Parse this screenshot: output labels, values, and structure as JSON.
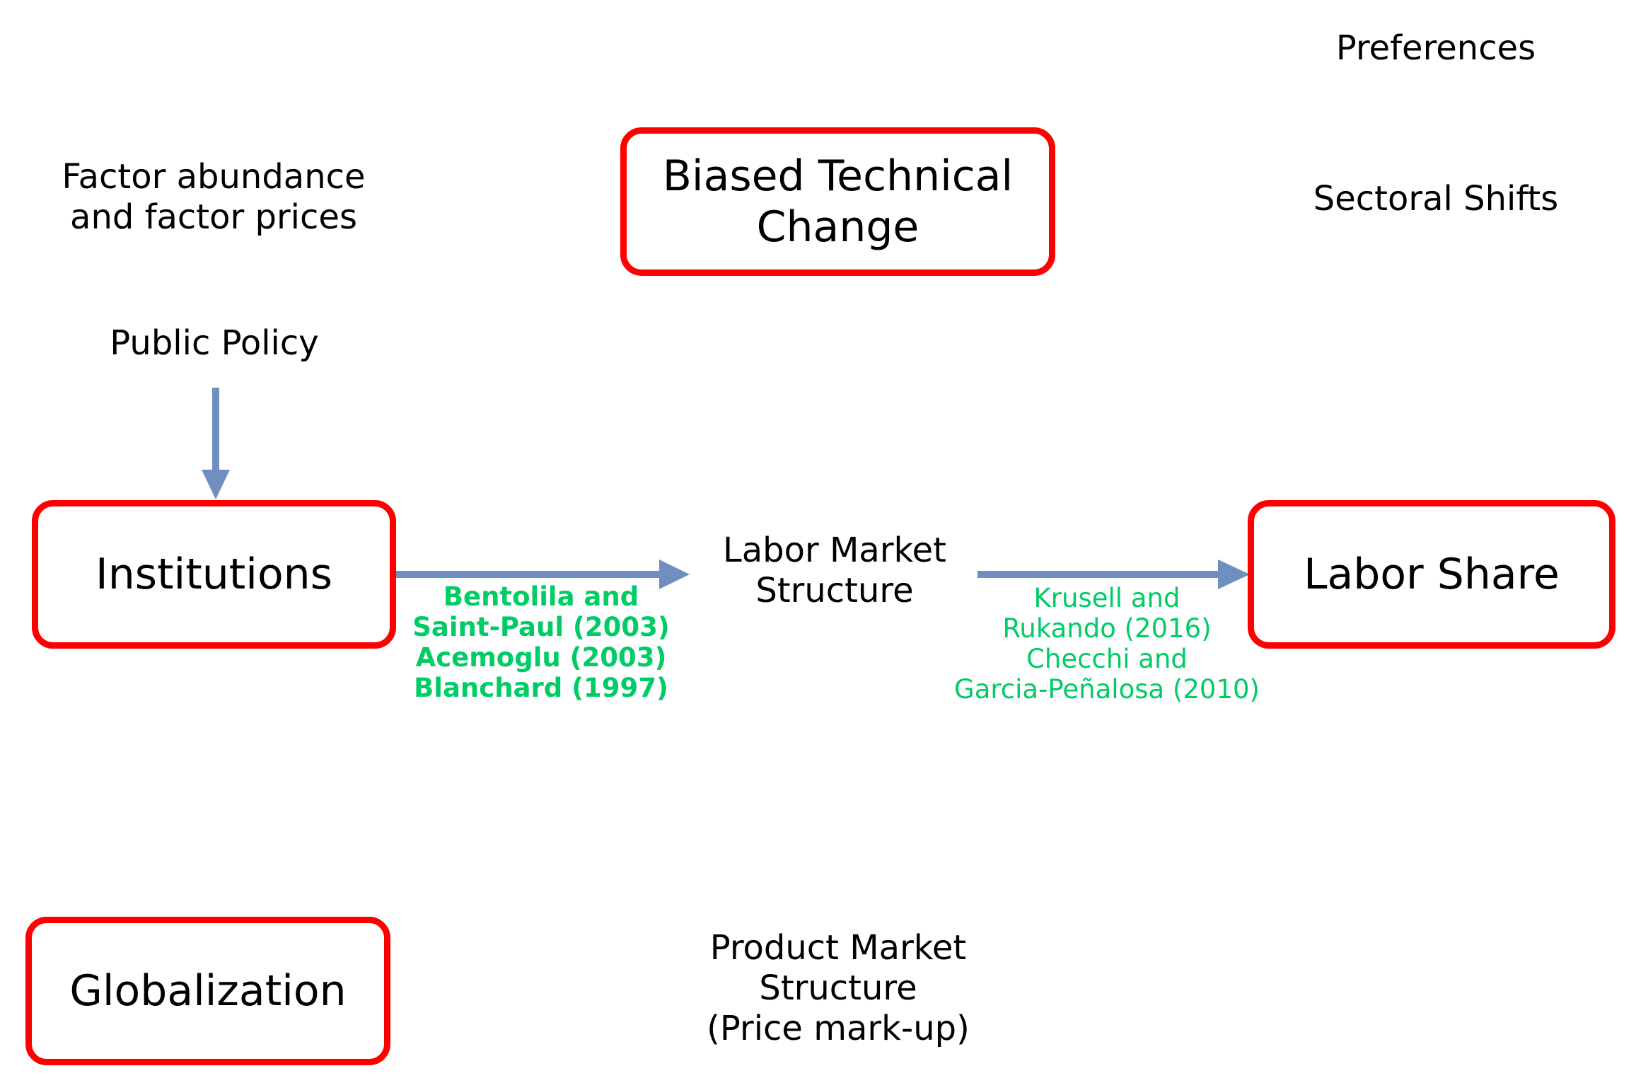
{
  "colors": {
    "box_border": "#ff0000",
    "arrow": "#6f8fc1",
    "reference_text": "#00cc66",
    "text": "#000000"
  },
  "nodes": {
    "biased_technical_change": "Biased Technical\nChange",
    "institutions": "Institutions",
    "labor_share": "Labor Share",
    "globalization": "Globalization"
  },
  "labels": {
    "preferences": "Preferences",
    "factor_abundance": "Factor abundance\nand factor prices",
    "sectoral_shifts": "Sectoral Shifts",
    "public_policy": "Public Policy",
    "labor_market_structure": "Labor Market\nStructure",
    "product_market_structure": "Product Market\nStructure\n(Price mark-up)"
  },
  "references": {
    "institutions_to_lms": "Bentolila and\nSaint-Paul (2003)\nAcemoglu (2003)\nBlanchard (1997)",
    "lms_to_labor_share": "Krusell and\nRukando (2016)\nChecchi and\nGarcia-Peñalosa (2010)"
  },
  "edges": [
    {
      "from": "public_policy",
      "to": "institutions"
    },
    {
      "from": "institutions",
      "to": "labor_market_structure"
    },
    {
      "from": "labor_market_structure",
      "to": "labor_share"
    }
  ]
}
